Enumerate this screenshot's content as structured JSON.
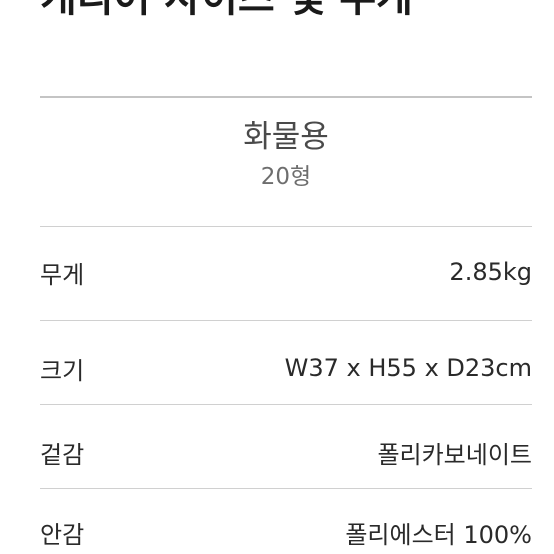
{
  "page": {
    "title": "캐리어 사이즈 및 무게"
  },
  "product": {
    "category": "화물용",
    "size": "20형"
  },
  "specs": [
    {
      "label": "무게",
      "value": "2.85kg"
    },
    {
      "label": "크기",
      "value": "W37 x H55 x D23cm"
    },
    {
      "label": "겉감",
      "value": "폴리카보네이트"
    },
    {
      "label": "안감",
      "value": "폴리에스터 100%"
    }
  ]
}
